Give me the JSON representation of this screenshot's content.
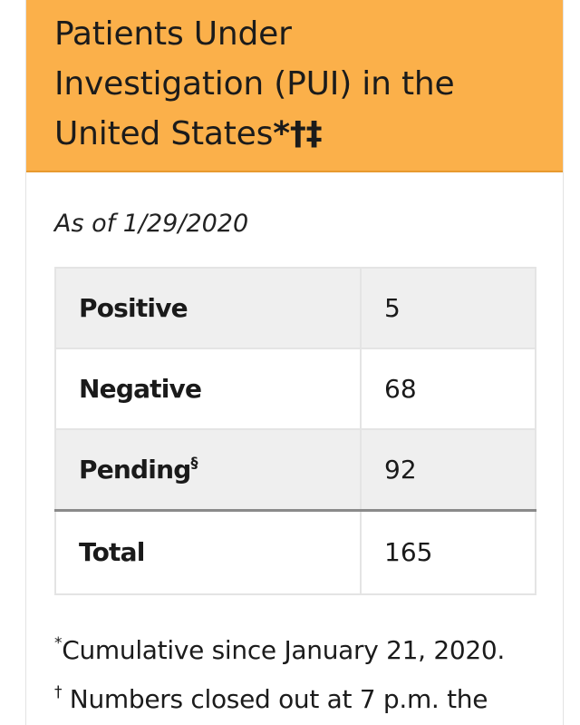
{
  "header": {
    "title_line1": "Patients Under",
    "title_line2": "Investigation (PUI) in the",
    "title_line3": "United States",
    "title_marks": "*†‡",
    "background": "#fbb04a"
  },
  "as_of": "As of 1/29/2020",
  "table": {
    "rows": [
      {
        "label": "Positive",
        "mark": "",
        "value": "5"
      },
      {
        "label": "Negative",
        "mark": "",
        "value": "68"
      },
      {
        "label": "Pending",
        "mark": "§",
        "value": "92"
      }
    ],
    "total": {
      "label": "Total",
      "value": "165"
    }
  },
  "footnotes": [
    {
      "mark": "*",
      "text": "Cumulative since January 21, 2020."
    },
    {
      "mark": "†",
      "text": " Numbers closed out at 7 p.m. the"
    }
  ]
}
